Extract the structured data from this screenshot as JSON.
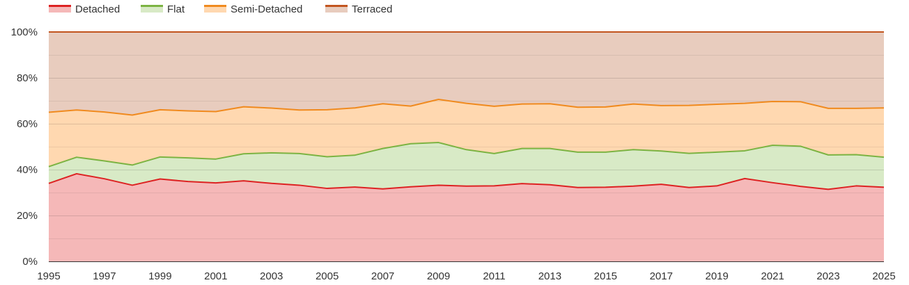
{
  "chart_data": {
    "type": "area",
    "stacked": true,
    "normalized": true,
    "title": "",
    "xlabel": "",
    "ylabel": "",
    "ylim": [
      0,
      100
    ],
    "legend_position": "top-left",
    "x": [
      1995,
      1996,
      1997,
      1998,
      1999,
      2000,
      2001,
      2002,
      2003,
      2004,
      2005,
      2006,
      2007,
      2008,
      2009,
      2010,
      2011,
      2012,
      2013,
      2014,
      2015,
      2016,
      2017,
      2018,
      2019,
      2020,
      2021,
      2022,
      2023,
      2024,
      2025
    ],
    "x_ticks": [
      "1995",
      "1997",
      "1999",
      "2001",
      "2003",
      "2005",
      "2007",
      "2009",
      "2011",
      "2013",
      "2015",
      "2017",
      "2019",
      "2021",
      "2023",
      "2025"
    ],
    "y_ticks": [
      "0%",
      "20%",
      "40%",
      "60%",
      "80%",
      "100%"
    ],
    "series": [
      {
        "name": "Detached",
        "line_color": "#dd2222",
        "fill_color": "#f5b8b8",
        "values": [
          34.0,
          38.2,
          36.0,
          33.2,
          35.9,
          34.8,
          34.2,
          35.1,
          34.0,
          33.2,
          31.8,
          32.4,
          31.6,
          32.5,
          33.2,
          32.8,
          32.9,
          33.9,
          33.4,
          32.2,
          32.3,
          32.8,
          33.6,
          32.2,
          32.9,
          36.1,
          34.3,
          32.7,
          31.4,
          32.9,
          32.3
        ]
      },
      {
        "name": "Flat",
        "line_color": "#7cb342",
        "fill_color": "#d8eac6",
        "values": [
          7.3,
          7.2,
          7.8,
          8.8,
          9.6,
          10.3,
          10.4,
          11.8,
          13.3,
          13.8,
          13.8,
          13.9,
          17.6,
          18.8,
          18.6,
          15.9,
          14.1,
          15.3,
          15.8,
          15.4,
          15.3,
          15.9,
          14.5,
          14.9,
          14.7,
          12.1,
          16.3,
          17.5,
          15.0,
          13.6,
          13.1
        ]
      },
      {
        "name": "Semi-Detached",
        "line_color": "#f08a1e",
        "fill_color": "#ffd8b0",
        "values": [
          23.7,
          20.6,
          21.3,
          21.8,
          20.6,
          20.5,
          20.7,
          20.5,
          19.5,
          19.0,
          20.5,
          20.6,
          19.5,
          16.4,
          18.8,
          20.2,
          20.6,
          19.4,
          19.5,
          19.6,
          19.7,
          19.9,
          19.8,
          20.9,
          20.9,
          20.7,
          19.1,
          19.4,
          20.3,
          20.2,
          21.5
        ]
      },
      {
        "name": "Terraced",
        "line_color": "#c2551e",
        "fill_color": "#e8ccbe",
        "values": [
          35.0,
          34.0,
          34.9,
          36.2,
          33.9,
          34.4,
          34.7,
          32.6,
          33.2,
          34.0,
          33.9,
          33.1,
          31.3,
          32.3,
          29.4,
          31.1,
          32.4,
          31.4,
          31.3,
          32.8,
          32.7,
          31.4,
          32.1,
          32.0,
          31.5,
          31.1,
          30.3,
          30.4,
          33.3,
          33.3,
          33.1
        ]
      }
    ]
  }
}
